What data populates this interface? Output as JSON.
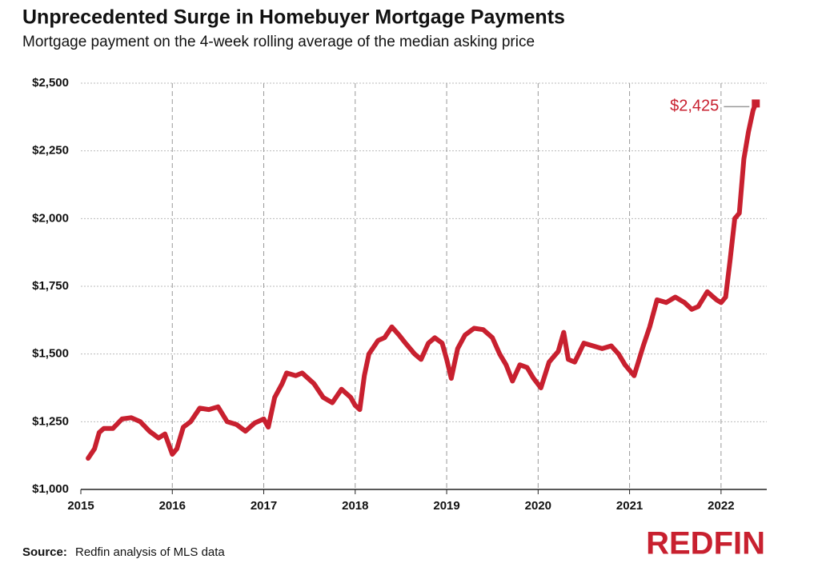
{
  "chart_data": {
    "type": "line",
    "title": "Unprecedented Surge in Homebuyer Mortgage Payments",
    "subtitle": "Mortgage payment on the 4-week rolling average of the median asking price",
    "annotation": "$2,425",
    "source_label": "Source:",
    "source": "Redfin analysis of MLS data",
    "logo": "REDFIN",
    "grid": true,
    "xlim": [
      2015,
      2022.5
    ],
    "xticks": [
      2015,
      2016,
      2017,
      2018,
      2019,
      2020,
      2021,
      2022
    ],
    "ylim": [
      1000,
      2500
    ],
    "yticks": [
      {
        "value": 1000,
        "label": "$1,000"
      },
      {
        "value": 1250,
        "label": "$1,250"
      },
      {
        "value": 1500,
        "label": "$1,500"
      },
      {
        "value": 1750,
        "label": "$1,750"
      },
      {
        "value": 2000,
        "label": "$2,000"
      },
      {
        "value": 2250,
        "label": "$2,250"
      },
      {
        "value": 2500,
        "label": "$2,500"
      }
    ],
    "x": [
      2015.08,
      2015.15,
      2015.2,
      2015.25,
      2015.35,
      2015.45,
      2015.55,
      2015.65,
      2015.75,
      2015.85,
      2015.92,
      2016.0,
      2016.05,
      2016.12,
      2016.2,
      2016.3,
      2016.4,
      2016.5,
      2016.6,
      2016.7,
      2016.8,
      2016.9,
      2017.0,
      2017.05,
      2017.12,
      2017.2,
      2017.25,
      2017.35,
      2017.42,
      2017.55,
      2017.65,
      2017.75,
      2017.85,
      2017.95,
      2018.0,
      2018.05,
      2018.1,
      2018.15,
      2018.25,
      2018.32,
      2018.4,
      2018.48,
      2018.55,
      2018.65,
      2018.72,
      2018.8,
      2018.87,
      2018.95,
      2019.0,
      2019.05,
      2019.12,
      2019.2,
      2019.3,
      2019.4,
      2019.5,
      2019.58,
      2019.65,
      2019.72,
      2019.8,
      2019.88,
      2019.95,
      2020.03,
      2020.12,
      2020.22,
      2020.28,
      2020.33,
      2020.4,
      2020.5,
      2020.6,
      2020.7,
      2020.8,
      2020.88,
      2020.95,
      2021.05,
      2021.15,
      2021.22,
      2021.3,
      2021.4,
      2021.5,
      2021.6,
      2021.68,
      2021.75,
      2021.85,
      2021.95,
      2022.0,
      2022.05,
      2022.1,
      2022.15,
      2022.2,
      2022.25,
      2022.3,
      2022.35,
      2022.38
    ],
    "series": [
      {
        "name": "Mortgage payment",
        "color": "#c8202f",
        "values": [
          1115,
          1150,
          1210,
          1225,
          1225,
          1260,
          1265,
          1250,
          1215,
          1190,
          1205,
          1130,
          1150,
          1230,
          1250,
          1300,
          1295,
          1305,
          1250,
          1240,
          1215,
          1245,
          1260,
          1230,
          1340,
          1390,
          1430,
          1420,
          1430,
          1390,
          1340,
          1320,
          1370,
          1340,
          1310,
          1295,
          1420,
          1500,
          1550,
          1560,
          1600,
          1570,
          1540,
          1500,
          1480,
          1540,
          1560,
          1540,
          1480,
          1410,
          1520,
          1570,
          1595,
          1590,
          1560,
          1500,
          1460,
          1400,
          1460,
          1450,
          1410,
          1375,
          1470,
          1510,
          1580,
          1480,
          1470,
          1540,
          1530,
          1520,
          1530,
          1500,
          1460,
          1420,
          1530,
          1600,
          1700,
          1690,
          1710,
          1690,
          1665,
          1675,
          1730,
          1700,
          1690,
          1710,
          1850,
          2000,
          2020,
          2220,
          2320,
          2400,
          2425
        ]
      }
    ]
  }
}
